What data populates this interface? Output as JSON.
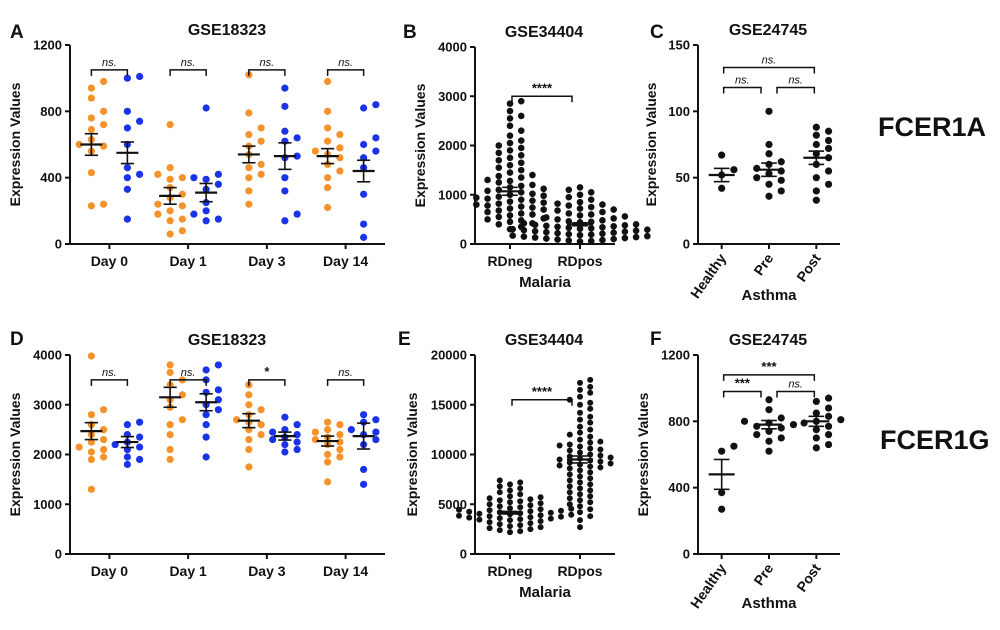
{
  "genes": [
    "FCER1A",
    "FCER1G"
  ],
  "colors": {
    "orange": "#F5922A",
    "blue": "#1A33E8",
    "black": "#111111"
  },
  "chart_data": [
    {
      "panel": "A",
      "type": "scatter",
      "title": "GSE18323",
      "xlabel": "",
      "ylabel": "Expression Values",
      "ylim": [
        0,
        1200
      ],
      "yticks": [
        "0",
        "400",
        "800",
        "1200"
      ],
      "categories": [
        "Day 0",
        "Day 1",
        "Day 3",
        "Day 14"
      ],
      "groups": [
        {
          "cat": 0,
          "color": "orange",
          "mean": 600,
          "sem": 65,
          "points": [
            980,
            940,
            880,
            800,
            760,
            720,
            690,
            630,
            600,
            590,
            560,
            430,
            240,
            230
          ]
        },
        {
          "cat": 0,
          "color": "blue",
          "mean": 550,
          "sem": 65,
          "points": [
            1010,
            1000,
            800,
            740,
            700,
            600,
            460,
            420,
            400,
            330,
            150
          ]
        },
        {
          "cat": 1,
          "color": "orange",
          "mean": 290,
          "sem": 50,
          "points": [
            720,
            460,
            420,
            400,
            390,
            340,
            300,
            280,
            240,
            230,
            200,
            180,
            150,
            140,
            80,
            60
          ]
        },
        {
          "cat": 1,
          "color": "blue",
          "mean": 310,
          "sem": 55,
          "points": [
            820,
            420,
            400,
            390,
            360,
            330,
            250,
            200,
            180,
            150,
            140
          ]
        },
        {
          "cat": 2,
          "color": "orange",
          "mean": 540,
          "sem": 50,
          "points": [
            1020,
            790,
            700,
            660,
            620,
            590,
            540,
            480,
            460,
            420,
            400,
            320,
            240
          ]
        },
        {
          "cat": 2,
          "color": "blue",
          "mean": 530,
          "sem": 80,
          "points": [
            940,
            830,
            680,
            640,
            620,
            530,
            520,
            400,
            320,
            180,
            140
          ]
        },
        {
          "cat": 3,
          "color": "orange",
          "mean": 530,
          "sem": 45,
          "points": [
            980,
            800,
            700,
            660,
            620,
            580,
            560,
            540,
            520,
            480,
            440,
            400,
            340,
            220
          ]
        },
        {
          "cat": 3,
          "color": "blue",
          "mean": 440,
          "sem": 65,
          "points": [
            840,
            820,
            640,
            600,
            560,
            520,
            460,
            300,
            120,
            40
          ]
        }
      ],
      "brackets": [
        {
          "label": "ns.",
          "a": 0,
          "b": 1,
          "ref": [
            0,
            0
          ],
          "y": 1050
        },
        {
          "label": "ns.",
          "a": 0,
          "b": 1,
          "ref": [
            1,
            1
          ],
          "y": 1050
        },
        {
          "label": "ns.",
          "a": 0,
          "b": 1,
          "ref": [
            2,
            2
          ],
          "y": 1050
        },
        {
          "label": "ns.",
          "a": 0,
          "b": 1,
          "ref": [
            3,
            3
          ],
          "y": 1050
        }
      ]
    },
    {
      "panel": "B",
      "type": "scatter",
      "title": "GSE34404",
      "xlabel": "Malaria",
      "ylabel": "Expression Values",
      "ylim": [
        0,
        4000
      ],
      "yticks": [
        "0",
        "1000",
        "2000",
        "3000",
        "4000"
      ],
      "categories": [
        "RDneg",
        "RDpos"
      ],
      "groups": [
        {
          "cat": 0,
          "color": "black",
          "mean": 1070,
          "sem": 80,
          "points": [
            2900,
            2850,
            2700,
            2600,
            2550,
            2400,
            2300,
            2200,
            2100,
            2050,
            2000,
            1950,
            1900,
            1850,
            1800,
            1750,
            1700,
            1650,
            1600,
            1550,
            1500,
            1450,
            1400,
            1380,
            1350,
            1300,
            1280,
            1250,
            1200,
            1180,
            1150,
            1120,
            1100,
            1080,
            1050,
            1020,
            1000,
            980,
            960,
            940,
            920,
            900,
            880,
            860,
            840,
            820,
            800,
            780,
            760,
            740,
            720,
            700,
            680,
            650,
            620,
            600,
            580,
            550,
            520,
            500,
            480,
            450,
            420,
            400,
            350,
            300
          ]
        },
        {
          "cat": 1,
          "color": "black",
          "mean": 400,
          "sem": 30,
          "points": [
            1150,
            1100,
            1050,
            1000,
            950,
            900,
            850,
            820,
            800,
            780,
            750,
            720,
            700,
            680,
            650,
            620,
            600,
            580,
            560,
            540,
            520,
            500,
            480,
            460,
            450,
            440,
            420,
            400,
            390,
            380,
            370,
            360,
            350,
            340,
            330,
            320,
            310,
            300,
            290,
            280,
            270,
            260,
            250,
            240,
            230,
            220,
            210,
            200,
            190,
            180,
            170,
            160,
            150,
            140,
            130,
            120,
            110,
            100,
            90,
            80,
            70,
            60,
            50
          ]
        }
      ],
      "brackets": [
        {
          "label": "****",
          "ref": [
            0,
            1
          ],
          "y": 3000
        }
      ]
    },
    {
      "panel": "C",
      "type": "scatter",
      "title": "GSE24745",
      "xlabel": "Asthma",
      "ylabel": "Expression Values",
      "ylim": [
        0,
        150
      ],
      "yticks": [
        "0",
        "50",
        "100",
        "150"
      ],
      "categories": [
        "Healthy",
        "Pre",
        "Post"
      ],
      "rotate_ticks": true,
      "groups": [
        {
          "cat": 0,
          "color": "black",
          "mean": 52,
          "sem": 5,
          "points": [
            67,
            56,
            52,
            42
          ]
        },
        {
          "cat": 1,
          "color": "black",
          "mean": 56,
          "sem": 5,
          "points": [
            100,
            75,
            68,
            62,
            60,
            57,
            55,
            53,
            50,
            48,
            45,
            40,
            36
          ]
        },
        {
          "cat": 2,
          "color": "black",
          "mean": 65,
          "sem": 5,
          "points": [
            88,
            85,
            82,
            78,
            75,
            72,
            68,
            65,
            60,
            55,
            50,
            45,
            40,
            33
          ]
        }
      ],
      "brackets": [
        {
          "label": "ns.",
          "ref": [
            0,
            2
          ],
          "y": 133
        },
        {
          "label": "ns.",
          "ref": [
            0,
            1
          ],
          "y": 118
        },
        {
          "label": "ns.",
          "ref": [
            1,
            2
          ],
          "y": 118
        }
      ]
    },
    {
      "panel": "D",
      "type": "scatter",
      "title": "GSE18323",
      "xlabel": "",
      "ylabel": "Expression Values",
      "ylim": [
        0,
        4000
      ],
      "yticks": [
        "0",
        "1000",
        "2000",
        "3000",
        "4000"
      ],
      "categories": [
        "Day 0",
        "Day 1",
        "Day 3",
        "Day 14"
      ],
      "groups": [
        {
          "cat": 0,
          "color": "orange",
          "mean": 2470,
          "sem": 170,
          "points": [
            3980,
            2900,
            2800,
            2600,
            2500,
            2400,
            2300,
            2250,
            2150,
            2100,
            2050,
            1950,
            1900,
            1300
          ]
        },
        {
          "cat": 0,
          "color": "blue",
          "mean": 2250,
          "sem": 110,
          "points": [
            2650,
            2600,
            2400,
            2350,
            2250,
            2200,
            2150,
            2100,
            1950,
            1900,
            1800
          ]
        },
        {
          "cat": 1,
          "color": "orange",
          "mean": 3150,
          "sem": 200,
          "points": [
            3800,
            3650,
            3500,
            3400,
            3200,
            3100,
            2950,
            2700,
            2600,
            2400,
            2100,
            1900
          ]
        },
        {
          "cat": 1,
          "color": "blue",
          "mean": 3050,
          "sem": 170,
          "points": [
            3800,
            3700,
            3500,
            3300,
            3250,
            3100,
            3000,
            2900,
            2800,
            2600,
            2350,
            1950
          ]
        },
        {
          "cat": 2,
          "color": "orange",
          "mean": 2680,
          "sem": 140,
          "points": [
            3400,
            3200,
            3000,
            2900,
            2800,
            2700,
            2650,
            2600,
            2500,
            2400,
            2300,
            2100,
            1750
          ]
        },
        {
          "cat": 2,
          "color": "blue",
          "mean": 2370,
          "sem": 80,
          "points": [
            2750,
            2600,
            2500,
            2450,
            2400,
            2350,
            2300,
            2250,
            2200,
            2100,
            2050
          ]
        },
        {
          "cat": 3,
          "color": "orange",
          "mean": 2270,
          "sem": 100,
          "points": [
            2650,
            2600,
            2500,
            2450,
            2400,
            2350,
            2300,
            2250,
            2200,
            2100,
            2000,
            1950,
            1850,
            1450
          ]
        },
        {
          "cat": 3,
          "color": "blue",
          "mean": 2370,
          "sem": 260,
          "points": [
            2800,
            2700,
            2650,
            2500,
            2450,
            2400,
            2300,
            2200,
            1700,
            1400
          ]
        }
      ],
      "brackets": [
        {
          "label": "ns.",
          "ref": [
            0,
            0
          ],
          "y": 3500
        },
        {
          "label": "ns.",
          "ref": [
            1,
            1
          ],
          "y": 3500
        },
        {
          "label": "*",
          "ref": [
            2,
            2
          ],
          "y": 3500
        },
        {
          "label": "ns.",
          "ref": [
            3,
            3
          ],
          "y": 3500
        }
      ]
    },
    {
      "panel": "E",
      "type": "scatter",
      "title": "GSE34404",
      "xlabel": "Malaria",
      "ylabel": "Expression Values",
      "ylim": [
        0,
        20000
      ],
      "yticks": [
        "0",
        "5000",
        "10000",
        "15000",
        "20000"
      ],
      "categories": [
        "RDneg",
        "RDpos"
      ],
      "groups": [
        {
          "cat": 0,
          "color": "black",
          "mean": 4150,
          "sem": 130,
          "points": [
            7400,
            7200,
            7000,
            6800,
            6600,
            6400,
            6200,
            6000,
            5800,
            5600,
            5400,
            5200,
            5100,
            5000,
            4900,
            4800,
            4700,
            4600,
            4500,
            4400,
            4300,
            4200,
            4100,
            4000,
            3900,
            3800,
            3700,
            3600,
            3500,
            3400,
            3300,
            3200,
            3100,
            3000,
            2900,
            2800,
            2700,
            2600,
            2500,
            2400,
            2300,
            2200,
            4250,
            4150,
            4050,
            3950,
            3850,
            4450,
            4350,
            3750,
            3650,
            4550,
            5300,
            5500,
            5700,
            3550,
            3450
          ]
        },
        {
          "cat": 1,
          "color": "black",
          "mean": 9500,
          "sem": 350,
          "points": [
            17500,
            17200,
            16800,
            16500,
            16200,
            15800,
            15500,
            15200,
            15000,
            14600,
            14200,
            13800,
            13500,
            13200,
            12800,
            12500,
            12200,
            12000,
            11800,
            11500,
            11200,
            11000,
            10800,
            10600,
            10400,
            10200,
            10000,
            9800,
            9600,
            9400,
            9300,
            9200,
            9100,
            9000,
            8800,
            8600,
            8400,
            8200,
            8000,
            7800,
            7600,
            7400,
            7200,
            7000,
            6800,
            6600,
            6400,
            6200,
            6000,
            5800,
            5600,
            5400,
            5200,
            5000,
            4800,
            4500,
            4200,
            3800,
            3400,
            2700,
            9500,
            9700,
            9900,
            8900,
            8700,
            10500,
            10900,
            11300
          ]
        }
      ],
      "brackets": [
        {
          "label": "****",
          "ref": [
            0,
            1
          ],
          "y": 15500
        }
      ]
    },
    {
      "panel": "F",
      "type": "scatter",
      "title": "GSE24745",
      "xlabel": "Asthma",
      "ylabel": "Expression Values",
      "ylim": [
        0,
        1200
      ],
      "yticks": [
        "0",
        "400",
        "800",
        "1200"
      ],
      "categories": [
        "Healthy",
        "Pre",
        "Post"
      ],
      "rotate_ticks": true,
      "groups": [
        {
          "cat": 0,
          "color": "black",
          "mean": 480,
          "sem": 90,
          "points": [
            650,
            620,
            370,
            270
          ]
        },
        {
          "cat": 1,
          "color": "black",
          "mean": 780,
          "sem": 25,
          "points": [
            930,
            870,
            820,
            800,
            790,
            780,
            770,
            760,
            740,
            720,
            700,
            680,
            620
          ]
        },
        {
          "cat": 2,
          "color": "black",
          "mean": 800,
          "sem": 30,
          "points": [
            940,
            920,
            880,
            850,
            830,
            810,
            800,
            790,
            770,
            750,
            720,
            700,
            660,
            640
          ]
        }
      ],
      "brackets": [
        {
          "label": "***",
          "ref": [
            0,
            2
          ],
          "y": 1080
        },
        {
          "label": "***",
          "ref": [
            0,
            1
          ],
          "y": 980
        },
        {
          "label": "ns.",
          "ref": [
            1,
            2
          ],
          "y": 980
        }
      ]
    }
  ]
}
